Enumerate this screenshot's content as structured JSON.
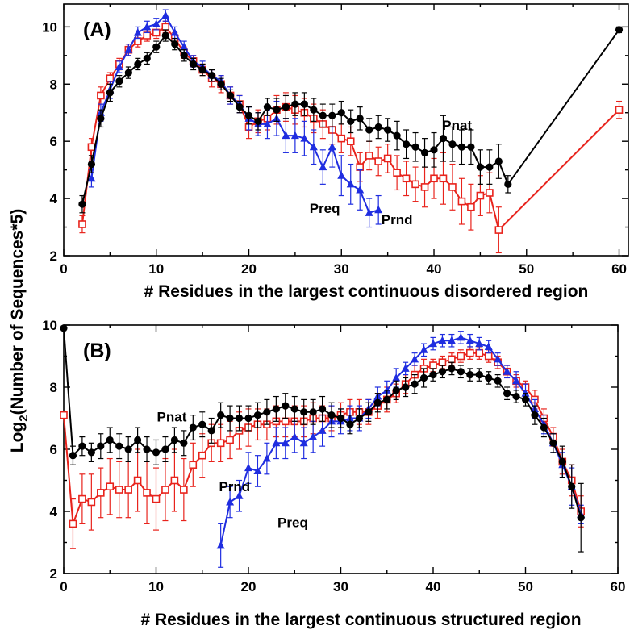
{
  "ylabel_main": "Log",
  "ylabel_sub": "2",
  "ylabel_rest": "(Number of Sequences*5)",
  "colors": {
    "Pnat": "#000000",
    "Prnd": "#e8231c",
    "Preq": "#1f2de0"
  },
  "chart_data": [
    {
      "type": "line",
      "panel": "(A)",
      "xlabel": "# Residues in the largest continuous disordered region",
      "ylabel": "Log2(Number of Sequences*5)",
      "xlim": [
        0,
        61
      ],
      "ylim": [
        2,
        10.8
      ],
      "xticks": [
        0,
        10,
        20,
        30,
        40,
        50,
        60
      ],
      "yticks": [
        2,
        4,
        6,
        8,
        10
      ],
      "series": [
        {
          "name": "Pnat",
          "marker": "circle",
          "x": [
            2,
            3,
            4,
            5,
            6,
            7,
            8,
            9,
            10,
            11,
            12,
            13,
            14,
            15,
            16,
            17,
            18,
            19,
            20,
            21,
            22,
            23,
            24,
            25,
            26,
            27,
            28,
            29,
            30,
            31,
            32,
            33,
            34,
            35,
            36,
            37,
            38,
            39,
            40,
            41,
            42,
            43,
            44,
            45,
            46,
            47,
            48,
            60
          ],
          "y": [
            3.8,
            5.2,
            6.8,
            7.7,
            8.1,
            8.4,
            8.7,
            8.9,
            9.3,
            9.7,
            9.4,
            9.0,
            8.7,
            8.5,
            8.3,
            8.0,
            7.6,
            7.2,
            6.9,
            6.7,
            7.2,
            7.1,
            7.2,
            7.3,
            7.3,
            7.1,
            6.9,
            6.9,
            7.0,
            6.7,
            6.8,
            6.4,
            6.5,
            6.4,
            6.2,
            5.9,
            5.8,
            5.6,
            5.7,
            6.1,
            5.9,
            5.8,
            5.8,
            5.1,
            5.1,
            5.3,
            4.5,
            9.9
          ],
          "err": [
            0.3,
            0.3,
            0.3,
            0.3,
            0.2,
            0.2,
            0.2,
            0.2,
            0.2,
            0.2,
            0.2,
            0.2,
            0.2,
            0.2,
            0.2,
            0.2,
            0.2,
            0.2,
            0.3,
            0.3,
            0.3,
            0.4,
            0.4,
            0.4,
            0.4,
            0.4,
            0.4,
            0.4,
            0.4,
            0.4,
            0.4,
            0.4,
            0.4,
            0.4,
            0.5,
            0.5,
            0.5,
            0.5,
            0.6,
            0.8,
            0.6,
            0.6,
            0.6,
            0.6,
            0.6,
            0.6,
            0.3,
            0.1
          ]
        },
        {
          "name": "Prnd",
          "marker": "square",
          "x": [
            2,
            3,
            4,
            5,
            6,
            7,
            8,
            9,
            10,
            11,
            12,
            13,
            14,
            15,
            16,
            17,
            18,
            19,
            20,
            21,
            22,
            23,
            24,
            25,
            26,
            27,
            28,
            29,
            30,
            31,
            32,
            33,
            34,
            35,
            36,
            37,
            38,
            39,
            40,
            41,
            42,
            43,
            44,
            45,
            46,
            47,
            60
          ],
          "y": [
            3.1,
            5.8,
            7.6,
            8.2,
            8.7,
            9.2,
            9.5,
            9.7,
            9.8,
            10.0,
            9.6,
            9.1,
            8.8,
            8.5,
            8.2,
            8.0,
            7.6,
            7.3,
            6.5,
            6.7,
            6.8,
            7.1,
            7.2,
            7.1,
            7.0,
            6.8,
            6.6,
            6.4,
            6.1,
            6.0,
            5.1,
            5.5,
            5.3,
            5.4,
            4.9,
            4.7,
            4.5,
            4.4,
            4.7,
            4.7,
            4.4,
            3.9,
            3.7,
            4.1,
            4.2,
            2.9,
            7.1
          ],
          "err": [
            0.3,
            0.3,
            0.3,
            0.2,
            0.2,
            0.2,
            0.2,
            0.2,
            0.2,
            0.2,
            0.2,
            0.2,
            0.2,
            0.2,
            0.3,
            0.3,
            0.3,
            0.3,
            0.4,
            0.4,
            0.4,
            0.5,
            0.5,
            0.5,
            0.5,
            0.5,
            0.5,
            0.5,
            0.5,
            0.5,
            0.5,
            0.5,
            0.5,
            0.5,
            0.6,
            0.6,
            0.6,
            0.7,
            0.7,
            0.9,
            0.8,
            0.8,
            0.8,
            0.7,
            0.7,
            0.8,
            0.3
          ]
        },
        {
          "name": "Preq",
          "marker": "triangle",
          "x": [
            3,
            4,
            5,
            6,
            7,
            8,
            9,
            10,
            11,
            12,
            13,
            14,
            15,
            16,
            17,
            18,
            19,
            20,
            21,
            22,
            23,
            24,
            25,
            26,
            27,
            28,
            29,
            30,
            31,
            32,
            33,
            34
          ],
          "y": [
            4.7,
            7.0,
            7.8,
            8.6,
            9.2,
            9.8,
            10.0,
            10.1,
            10.4,
            9.8,
            9.3,
            8.8,
            8.6,
            8.3,
            8.1,
            7.6,
            7.3,
            6.8,
            6.6,
            6.6,
            6.8,
            6.2,
            6.2,
            6.1,
            5.8,
            5.1,
            5.8,
            4.8,
            4.5,
            4.3,
            3.5,
            3.6
          ],
          "err": [
            0.3,
            0.3,
            0.3,
            0.2,
            0.2,
            0.2,
            0.2,
            0.2,
            0.2,
            0.2,
            0.2,
            0.2,
            0.2,
            0.2,
            0.2,
            0.3,
            0.3,
            0.4,
            0.4,
            0.5,
            0.6,
            0.6,
            0.6,
            0.6,
            0.6,
            0.6,
            0.7,
            0.7,
            0.7,
            0.7,
            0.5,
            0.5
          ]
        }
      ],
      "annotations": [
        {
          "text": "Pnat",
          "x": 42.5,
          "y": 6.4
        },
        {
          "text": "Preq",
          "x": 28.2,
          "y": 3.5
        },
        {
          "text": "Prnd",
          "x": 36.0,
          "y": 3.1
        }
      ]
    },
    {
      "type": "line",
      "panel": "(B)",
      "xlabel": "# Residues in the largest continuous structured region",
      "ylabel": "Log2(Number of Sequences*5)",
      "xlim": [
        0,
        60
      ],
      "ylim": [
        2,
        10
      ],
      "xticks": [
        0,
        10,
        20,
        30,
        40,
        50,
        60
      ],
      "yticks": [
        2,
        4,
        6,
        8,
        10
      ],
      "series": [
        {
          "name": "Pnat",
          "marker": "circle",
          "x": [
            0,
            1,
            2,
            3,
            4,
            5,
            6,
            7,
            8,
            9,
            10,
            11,
            12,
            13,
            14,
            15,
            16,
            17,
            18,
            19,
            20,
            21,
            22,
            23,
            24,
            25,
            26,
            27,
            28,
            29,
            30,
            31,
            32,
            33,
            34,
            35,
            36,
            37,
            38,
            39,
            40,
            41,
            42,
            43,
            44,
            45,
            46,
            47,
            48,
            49,
            50,
            51,
            52,
            53,
            54,
            55,
            56
          ],
          "y": [
            9.9,
            5.8,
            6.1,
            5.9,
            6.1,
            6.3,
            6.1,
            6.0,
            6.3,
            6.0,
            5.9,
            6.0,
            6.3,
            6.2,
            6.7,
            6.8,
            6.6,
            7.1,
            7.0,
            7.0,
            7.0,
            7.1,
            7.2,
            7.3,
            7.4,
            7.3,
            7.2,
            7.2,
            7.3,
            7.1,
            7.0,
            6.8,
            7.0,
            7.2,
            7.5,
            7.6,
            7.9,
            8.0,
            8.1,
            8.3,
            8.4,
            8.5,
            8.6,
            8.5,
            8.4,
            8.4,
            8.3,
            8.2,
            7.8,
            7.7,
            7.6,
            7.1,
            6.7,
            6.2,
            5.6,
            4.8,
            3.8
          ],
          "err": [
            0.05,
            0.3,
            0.3,
            0.3,
            0.4,
            0.4,
            0.4,
            0.4,
            0.4,
            0.4,
            0.4,
            0.4,
            0.4,
            0.4,
            0.4,
            0.4,
            0.4,
            0.4,
            0.4,
            0.4,
            0.4,
            0.4,
            0.4,
            0.4,
            0.4,
            0.4,
            0.4,
            0.4,
            0.4,
            0.4,
            0.3,
            0.3,
            0.3,
            0.3,
            0.3,
            0.3,
            0.3,
            0.3,
            0.3,
            0.3,
            0.2,
            0.2,
            0.2,
            0.2,
            0.2,
            0.2,
            0.2,
            0.2,
            0.2,
            0.2,
            0.2,
            0.3,
            0.3,
            0.3,
            0.5,
            0.7,
            1.1
          ]
        },
        {
          "name": "Prnd",
          "marker": "square",
          "x": [
            0,
            1,
            2,
            3,
            4,
            5,
            6,
            7,
            8,
            9,
            10,
            11,
            12,
            13,
            14,
            15,
            16,
            17,
            18,
            19,
            20,
            21,
            22,
            23,
            24,
            25,
            26,
            27,
            28,
            29,
            30,
            31,
            32,
            33,
            34,
            35,
            36,
            37,
            38,
            39,
            40,
            41,
            42,
            43,
            44,
            45,
            46,
            47,
            48,
            49,
            50,
            51,
            52,
            53,
            54,
            55,
            56
          ],
          "y": [
            7.1,
            3.6,
            4.4,
            4.3,
            4.6,
            4.8,
            4.7,
            4.7,
            5.0,
            4.6,
            4.4,
            4.7,
            5.0,
            4.7,
            5.5,
            5.8,
            6.2,
            6.2,
            6.3,
            6.6,
            6.7,
            6.8,
            6.8,
            6.9,
            6.9,
            6.9,
            6.9,
            7.0,
            7.0,
            7.0,
            7.1,
            7.2,
            7.2,
            7.2,
            7.4,
            7.6,
            7.8,
            8.1,
            8.4,
            8.6,
            8.7,
            8.8,
            8.9,
            9.0,
            9.1,
            9.1,
            9.0,
            8.8,
            8.5,
            8.2,
            8.0,
            7.6,
            7.0,
            6.4,
            5.6,
            5.0,
            4.0
          ],
          "err": [
            0.1,
            0.8,
            0.8,
            0.9,
            0.8,
            0.9,
            0.9,
            0.9,
            1.0,
            1.0,
            1.0,
            1.0,
            1.0,
            1.0,
            0.7,
            0.7,
            0.6,
            0.6,
            0.6,
            0.6,
            0.6,
            0.5,
            0.5,
            0.5,
            0.5,
            0.5,
            0.5,
            0.5,
            0.4,
            0.4,
            0.4,
            0.4,
            0.4,
            0.4,
            0.4,
            0.4,
            0.3,
            0.3,
            0.3,
            0.3,
            0.2,
            0.2,
            0.2,
            0.2,
            0.2,
            0.2,
            0.2,
            0.2,
            0.2,
            0.2,
            0.2,
            0.3,
            0.3,
            0.3,
            0.4,
            0.5,
            0.5
          ]
        },
        {
          "name": "Preq",
          "marker": "triangle",
          "x": [
            17,
            18,
            19,
            20,
            21,
            22,
            23,
            24,
            25,
            26,
            27,
            28,
            29,
            30,
            31,
            32,
            33,
            34,
            35,
            36,
            37,
            38,
            39,
            40,
            41,
            42,
            43,
            44,
            45,
            46,
            47,
            48,
            49,
            50,
            51,
            52,
            53,
            54,
            55,
            56
          ],
          "y": [
            2.9,
            4.3,
            4.5,
            5.4,
            5.3,
            5.7,
            6.2,
            6.2,
            6.4,
            6.2,
            6.4,
            6.6,
            6.9,
            6.9,
            7.0,
            7.0,
            7.3,
            7.7,
            7.9,
            8.3,
            8.6,
            8.9,
            9.2,
            9.4,
            9.5,
            9.5,
            9.6,
            9.5,
            9.4,
            9.3,
            8.9,
            8.5,
            8.2,
            7.8,
            7.3,
            6.8,
            6.2,
            5.5,
            4.8,
            3.9
          ],
          "err": [
            0.7,
            0.5,
            0.5,
            0.5,
            0.5,
            0.5,
            0.5,
            0.5,
            0.5,
            0.5,
            0.5,
            0.5,
            0.5,
            0.4,
            0.4,
            0.4,
            0.3,
            0.3,
            0.3,
            0.3,
            0.2,
            0.2,
            0.2,
            0.2,
            0.2,
            0.2,
            0.2,
            0.2,
            0.2,
            0.2,
            0.2,
            0.2,
            0.3,
            0.3,
            0.3,
            0.3,
            0.3,
            0.4,
            0.6,
            0.3
          ]
        }
      ],
      "annotations": [
        {
          "text": "Pnat",
          "x": 11.7,
          "y": 6.9
        },
        {
          "text": "Prnd",
          "x": 18.5,
          "y": 4.65
        },
        {
          "text": "Preq",
          "x": 24.8,
          "y": 3.5
        }
      ]
    }
  ]
}
